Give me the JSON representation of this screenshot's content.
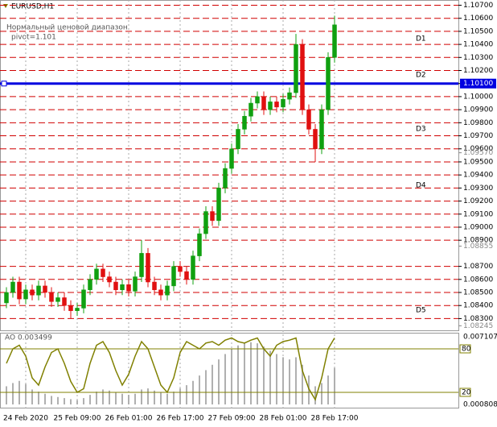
{
  "chart_data": {
    "type": "candlestick",
    "title": "EURUSD,H1",
    "subtitle": "Нормальный ценовой диапазон",
    "annotation": "pivot=1.101",
    "pivot_level": 1.101,
    "pivot_color": "#0000e0",
    "zone_labels": [
      "D1",
      "D2",
      "D3",
      "D4",
      "D5"
    ],
    "up_color": "#10a010",
    "down_color": "#e01010",
    "level_color": "#d00000",
    "categories": [
      null,
      null,
      null,
      "24 Feb 2020",
      null,
      null,
      null,
      null,
      null,
      null,
      null,
      "25 Feb 09:00",
      null,
      null,
      null,
      null,
      null,
      null,
      null,
      "26 Feb 01:00",
      null,
      null,
      null,
      null,
      null,
      null,
      null,
      "26 Feb 17:00",
      null,
      null,
      null,
      null,
      null,
      null,
      null,
      "27 Feb 09:00",
      null,
      null,
      null,
      null,
      null,
      null,
      null,
      "28 Feb 01:00",
      null,
      null,
      null,
      null,
      null,
      null,
      null,
      "28 Feb 17:00"
    ],
    "open": [
      1.0842,
      1.085,
      1.0858,
      1.0845,
      1.0852,
      1.0848,
      1.0855,
      1.085,
      1.0843,
      1.0846,
      1.084,
      1.0836,
      1.0838,
      1.0852,
      1.086,
      1.0868,
      1.0862,
      1.0858,
      1.0852,
      1.0856,
      1.0851,
      1.0862,
      1.088,
      1.0858,
      1.0852,
      1.0848,
      1.0855,
      1.087,
      1.0866,
      1.086,
      1.0878,
      1.0895,
      1.0912,
      1.0905,
      1.093,
      1.0945,
      1.096,
      1.0975,
      1.0985,
      1.0995,
      1.1,
      1.099,
      1.0996,
      1.0992,
      1.0998,
      1.1003,
      1.104,
      1.099,
      1.0975,
      1.096,
      1.099,
      1.103
    ],
    "high": [
      1.0854,
      1.0862,
      1.0862,
      1.0856,
      1.0856,
      1.0859,
      1.0859,
      1.0854,
      1.085,
      1.085,
      1.0844,
      1.0842,
      1.0856,
      1.0864,
      1.0872,
      1.0872,
      1.0866,
      1.0862,
      1.086,
      1.086,
      1.0866,
      1.089,
      1.0884,
      1.0862,
      1.0856,
      1.0859,
      1.0874,
      1.0874,
      1.087,
      1.0882,
      1.0899,
      1.0916,
      1.0916,
      1.0934,
      1.0949,
      1.0964,
      1.0979,
      1.0989,
      1.0999,
      1.1004,
      1.1004,
      1.1,
      1.1,
      1.1002,
      1.1007,
      1.1048,
      1.1044,
      1.0994,
      1.0979,
      1.0994,
      1.1034,
      1.1062
    ],
    "low": [
      1.0838,
      1.0846,
      1.0841,
      1.0841,
      1.0844,
      1.0844,
      1.0846,
      1.0839,
      1.0839,
      1.0836,
      1.083,
      1.0832,
      1.0834,
      1.0848,
      1.0856,
      1.0858,
      1.0854,
      1.0848,
      1.0848,
      1.0847,
      1.0847,
      1.0858,
      1.0854,
      1.0848,
      1.0844,
      1.0844,
      1.0851,
      1.0862,
      1.0856,
      1.0856,
      1.0874,
      1.0891,
      1.0901,
      1.0901,
      1.0926,
      1.0941,
      1.0956,
      1.0971,
      1.0981,
      1.0991,
      1.0986,
      1.0986,
      1.0988,
      1.0988,
      1.0994,
      1.0999,
      1.0986,
      1.0971,
      1.095,
      1.0956,
      1.0986,
      1.1026
    ],
    "close": [
      1.085,
      1.0858,
      1.0845,
      1.0852,
      1.0848,
      1.0855,
      1.085,
      1.0843,
      1.0846,
      1.084,
      1.0836,
      1.0838,
      1.0852,
      1.086,
      1.0868,
      1.0862,
      1.0858,
      1.0852,
      1.0856,
      1.0851,
      1.0862,
      1.088,
      1.0858,
      1.0852,
      1.0848,
      1.0855,
      1.087,
      1.0866,
      1.086,
      1.0878,
      1.0895,
      1.0912,
      1.0905,
      1.093,
      1.0945,
      1.096,
      1.0975,
      1.0985,
      1.0995,
      1.1,
      1.099,
      1.0996,
      1.0992,
      1.0998,
      1.1003,
      1.104,
      1.099,
      1.0975,
      1.096,
      1.099,
      1.103,
      1.1055
    ],
    "ylim": [
      1.0821,
      1.1074
    ],
    "yticks": [
      {
        "value": 1.107,
        "label": "1.10700"
      },
      {
        "value": 1.106,
        "label": "1.10600"
      },
      {
        "value": 1.105,
        "label": "1.10500"
      },
      {
        "value": 1.104,
        "label": "1.10400"
      },
      {
        "value": 1.103,
        "label": "1.10300"
      },
      {
        "value": 1.102,
        "label": "1.10200"
      },
      {
        "value": 1.101,
        "label": "1.10100"
      },
      {
        "value": 1.1,
        "label": "1.10000"
      },
      {
        "value": 1.099,
        "label": "1.09900"
      },
      {
        "value": 1.098,
        "label": "1.09800"
      },
      {
        "value": 1.097,
        "label": "1.09700"
      },
      {
        "value": 1.096,
        "label": "1.09600"
      },
      {
        "value": 1.095,
        "label": "1.09500"
      },
      {
        "value": 1.094,
        "label": "1.09400"
      },
      {
        "value": 1.093,
        "label": "1.09300"
      },
      {
        "value": 1.092,
        "label": "1.09200"
      },
      {
        "value": 1.091,
        "label": "1.09100"
      },
      {
        "value": 1.09,
        "label": "1.09000"
      },
      {
        "value": 1.089,
        "label": "1.08900"
      },
      {
        "value": 1.087,
        "label": "1.08700"
      },
      {
        "value": 1.086,
        "label": "1.08600"
      },
      {
        "value": 1.085,
        "label": "1.08500"
      },
      {
        "value": 1.084,
        "label": "1.08400"
      },
      {
        "value": 1.083,
        "label": "1.08300"
      }
    ],
    "price_marks": [
      {
        "value": 1.0957,
        "label": "1.09570"
      },
      {
        "value": 1.08855,
        "label": "1.08855"
      },
      {
        "value": 1.08245,
        "label": "1.08245"
      }
    ],
    "oscillator": {
      "title": "AO 0.003499",
      "ylim": [
        0,
        100
      ],
      "yticks": [
        20,
        80
      ],
      "line_color": "#808000",
      "values": [
        60,
        80,
        85,
        70,
        40,
        30,
        55,
        75,
        80,
        60,
        35,
        20,
        25,
        60,
        85,
        90,
        75,
        50,
        30,
        45,
        70,
        90,
        80,
        55,
        30,
        20,
        40,
        75,
        90,
        85,
        80,
        88,
        90,
        85,
        92,
        95,
        90,
        88,
        92,
        95,
        80,
        70,
        85,
        90,
        92,
        95,
        50,
        25,
        10,
        40,
        80,
        95
      ],
      "ao_ylim": [
        0.000808,
        0.007107
      ],
      "ao_color": "#b0b0b0",
      "ao_values": [
        0.0025,
        0.0028,
        0.003,
        0.0027,
        0.0022,
        0.002,
        0.0018,
        0.0016,
        0.0015,
        0.0014,
        0.0013,
        0.0012,
        0.0014,
        0.0017,
        0.002,
        0.0022,
        0.0021,
        0.0019,
        0.0018,
        0.0017,
        0.0018,
        0.0022,
        0.0023,
        0.0021,
        0.0019,
        0.0018,
        0.002,
        0.0023,
        0.0026,
        0.003,
        0.0035,
        0.004,
        0.0045,
        0.005,
        0.0055,
        0.006,
        0.0063,
        0.0065,
        0.0066,
        0.0065,
        0.0062,
        0.0058,
        0.0055,
        0.0052,
        0.005,
        0.0052,
        0.0045,
        0.0035,
        0.0025,
        0.0028,
        0.0035,
        0.0042
      ]
    }
  }
}
